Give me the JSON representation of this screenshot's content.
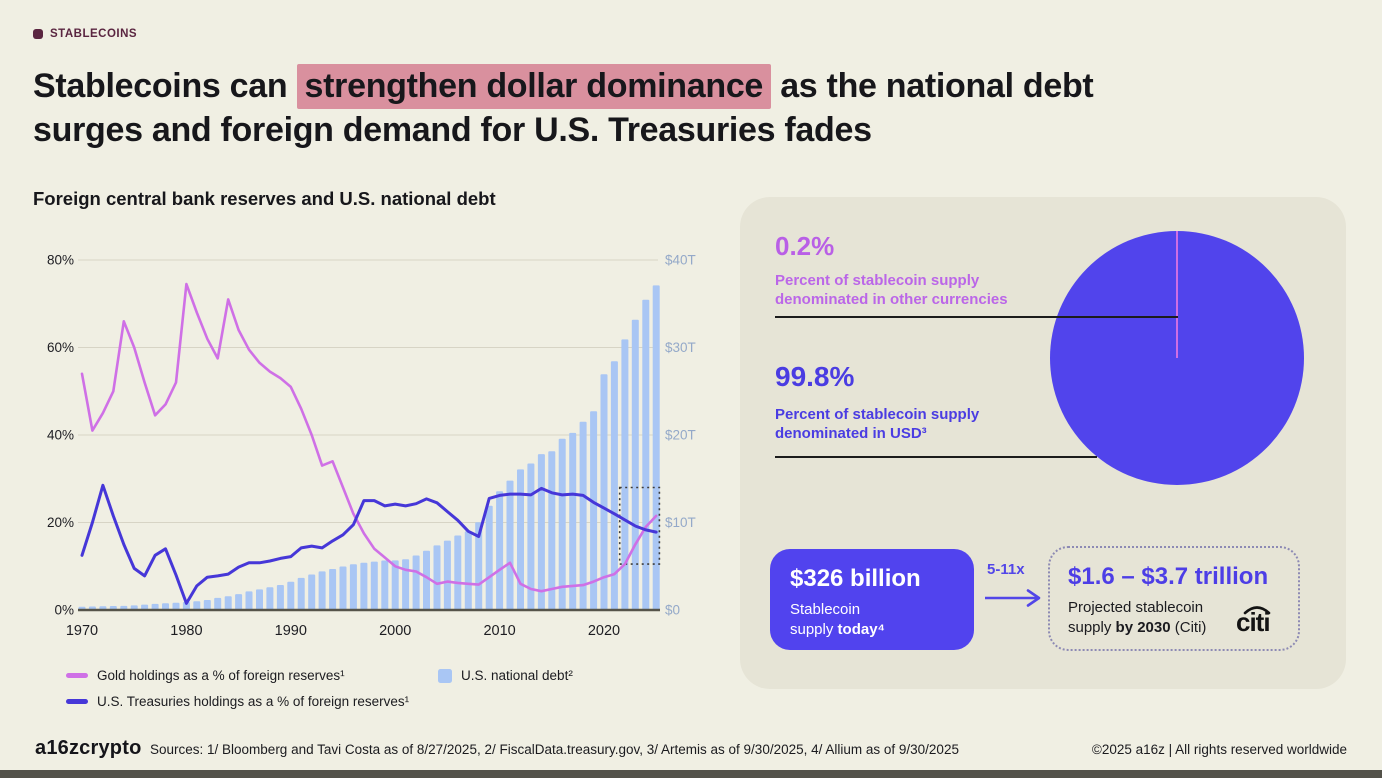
{
  "page": {
    "eyebrow": "STABLECOINS",
    "title_line1_pre": "Stablecoins can ",
    "title_line1_highlight": "strengthen dollar dominance",
    "title_line1_post": " as the national debt",
    "title_line2": "surges and foreign demand for U.S. Treasuries fades"
  },
  "colors": {
    "background": "#f0efe3",
    "panel": "#e6e4d6",
    "accent_maroon": "#5a2540",
    "title_highlight": "#d9909e",
    "gold_line": "#cf70e6",
    "treasuries_line": "#4637d8",
    "debt_bar": "#a9c6f4",
    "pie_usd": "#5144ec",
    "pie_other": "#cf6ee4",
    "stat_other_text": "#b95fe6",
    "stat_usd_text": "#4a3ce2",
    "supply_card_bg": "#5143ee",
    "projection_text": "#4d3ee6",
    "right_axis_text": "#94a9c9"
  },
  "chart_data": [
    {
      "type": "combo-line-bar",
      "title": "Foreign central bank reserves and U.S. national debt",
      "grid": true,
      "legend_position": "bottom-left",
      "x": [
        1970,
        1971,
        1972,
        1973,
        1974,
        1975,
        1976,
        1977,
        1978,
        1979,
        1980,
        1981,
        1982,
        1983,
        1984,
        1985,
        1986,
        1987,
        1988,
        1989,
        1990,
        1991,
        1992,
        1993,
        1994,
        1995,
        1996,
        1997,
        1998,
        1999,
        2000,
        2001,
        2002,
        2003,
        2004,
        2005,
        2006,
        2007,
        2008,
        2009,
        2010,
        2011,
        2012,
        2013,
        2014,
        2015,
        2016,
        2017,
        2018,
        2019,
        2020,
        2021,
        2022,
        2023,
        2024,
        2025
      ],
      "x_ticks": [
        1970,
        1980,
        1990,
        2000,
        2010,
        2020
      ],
      "left_axis": {
        "unit": "percent",
        "ticks": [
          "0%",
          "20%",
          "40%",
          "60%",
          "80%"
        ],
        "range": [
          0,
          80
        ]
      },
      "right_axis": {
        "unit": "trillion USD",
        "ticks": [
          "$0",
          "$10T",
          "$20T",
          "$30T",
          "$40T"
        ],
        "range": [
          0,
          40
        ]
      },
      "annotation_box": {
        "x_years": [
          2021.5,
          2025.3
        ],
        "left_axis_pct": [
          10.5,
          28
        ]
      },
      "series": [
        {
          "name": "U.S. national debt²",
          "type": "bar",
          "axis": "right",
          "color": "#a9c6f4",
          "values": [
            0.37,
            0.4,
            0.43,
            0.46,
            0.47,
            0.53,
            0.62,
            0.7,
            0.77,
            0.83,
            0.91,
            1.0,
            1.14,
            1.38,
            1.57,
            1.82,
            2.13,
            2.35,
            2.6,
            2.86,
            3.23,
            3.67,
            4.06,
            4.41,
            4.69,
            4.97,
            5.22,
            5.41,
            5.53,
            5.66,
            5.67,
            5.81,
            6.23,
            6.78,
            7.38,
            7.93,
            8.51,
            9.01,
            10.02,
            11.91,
            13.56,
            14.79,
            16.07,
            16.74,
            17.82,
            18.15,
            19.57,
            20.24,
            21.52,
            22.72,
            26.95,
            28.43,
            30.93,
            33.17,
            35.46,
            37.1
          ]
        },
        {
          "name": "Gold holdings as a % of foreign reserves¹",
          "type": "line",
          "axis": "left",
          "color": "#cf70e6",
          "width": 2.6,
          "values": [
            54,
            41,
            45,
            50,
            66,
            60,
            52,
            44.5,
            47,
            52,
            74.5,
            68,
            62,
            57.5,
            71,
            64,
            59.5,
            56.5,
            54.5,
            53,
            51,
            46,
            40,
            33,
            34,
            28,
            22,
            17.5,
            14,
            12,
            10,
            9.2,
            8.8,
            7.5,
            6,
            6.5,
            6.2,
            6,
            5.8,
            7.5,
            9.2,
            10.8,
            6,
            4.8,
            4.3,
            4.8,
            5.3,
            5.5,
            5.7,
            6.5,
            7.5,
            8.2,
            10.5,
            15,
            19,
            21.5
          ]
        },
        {
          "name": "U.S. Treasuries holdings as a % of foreign reserves¹",
          "type": "line",
          "axis": "left",
          "color": "#4637d8",
          "width": 3,
          "values": [
            12.5,
            20,
            28.5,
            21.5,
            15,
            9.5,
            7.8,
            12.5,
            14,
            8,
            1.5,
            5.5,
            7.5,
            7.8,
            8.2,
            9.8,
            10.8,
            10.8,
            11.2,
            11.8,
            12.2,
            14.2,
            14.6,
            14.2,
            15.8,
            17.2,
            19.5,
            25,
            25,
            23.8,
            24.2,
            23.8,
            24.3,
            25.4,
            24.5,
            22.5,
            20.5,
            18,
            16.8,
            25.5,
            26.2,
            26.5,
            26.5,
            26.3,
            27.8,
            26.8,
            26.3,
            26.5,
            26.2,
            24.6,
            23.3,
            22,
            20.6,
            19.2,
            18.3,
            17.8
          ]
        }
      ]
    },
    {
      "type": "pie",
      "slices": [
        {
          "label": "Percent of stablecoin supply denominated in USD³",
          "value": 99.8,
          "color": "#5144ec"
        },
        {
          "label": "Percent of stablecoin supply denominated in other currencies",
          "value": 0.2,
          "color": "#cf6ee4"
        }
      ]
    }
  ],
  "panel": {
    "stat_other": {
      "value": "0.2%",
      "label_line1": "Percent of stablecoin supply",
      "label_line2": "denominated in other currencies"
    },
    "stat_usd": {
      "value": "99.8%",
      "label_line1": "Percent of stablecoin supply",
      "label_line2": "denominated in USD³"
    },
    "supply_card": {
      "value": "$326 billion",
      "label_line1": "Stablecoin",
      "label_line2_regular": "supply ",
      "label_line2_bold": "today⁴"
    },
    "multiplier": "5-11x",
    "projection_card": {
      "value": "$1.6 – $3.7 trillion",
      "label_line1": "Projected stablecoin",
      "label_line2_regular": "supply ",
      "label_line2_bold": "by 2030",
      "label_line2_post": " (Citi)",
      "logo": "citi"
    }
  },
  "footer": {
    "logo": "a16zcrypto",
    "sources": "Sources: 1/ Bloomberg and Tavi Costa as of 8/27/2025, 2/ FiscalData.treasury.gov, 3/ Artemis as of 9/30/2025, 4/ Allium as of 9/30/2025",
    "copyright": "©2025 a16z | All rights reserved worldwide"
  }
}
